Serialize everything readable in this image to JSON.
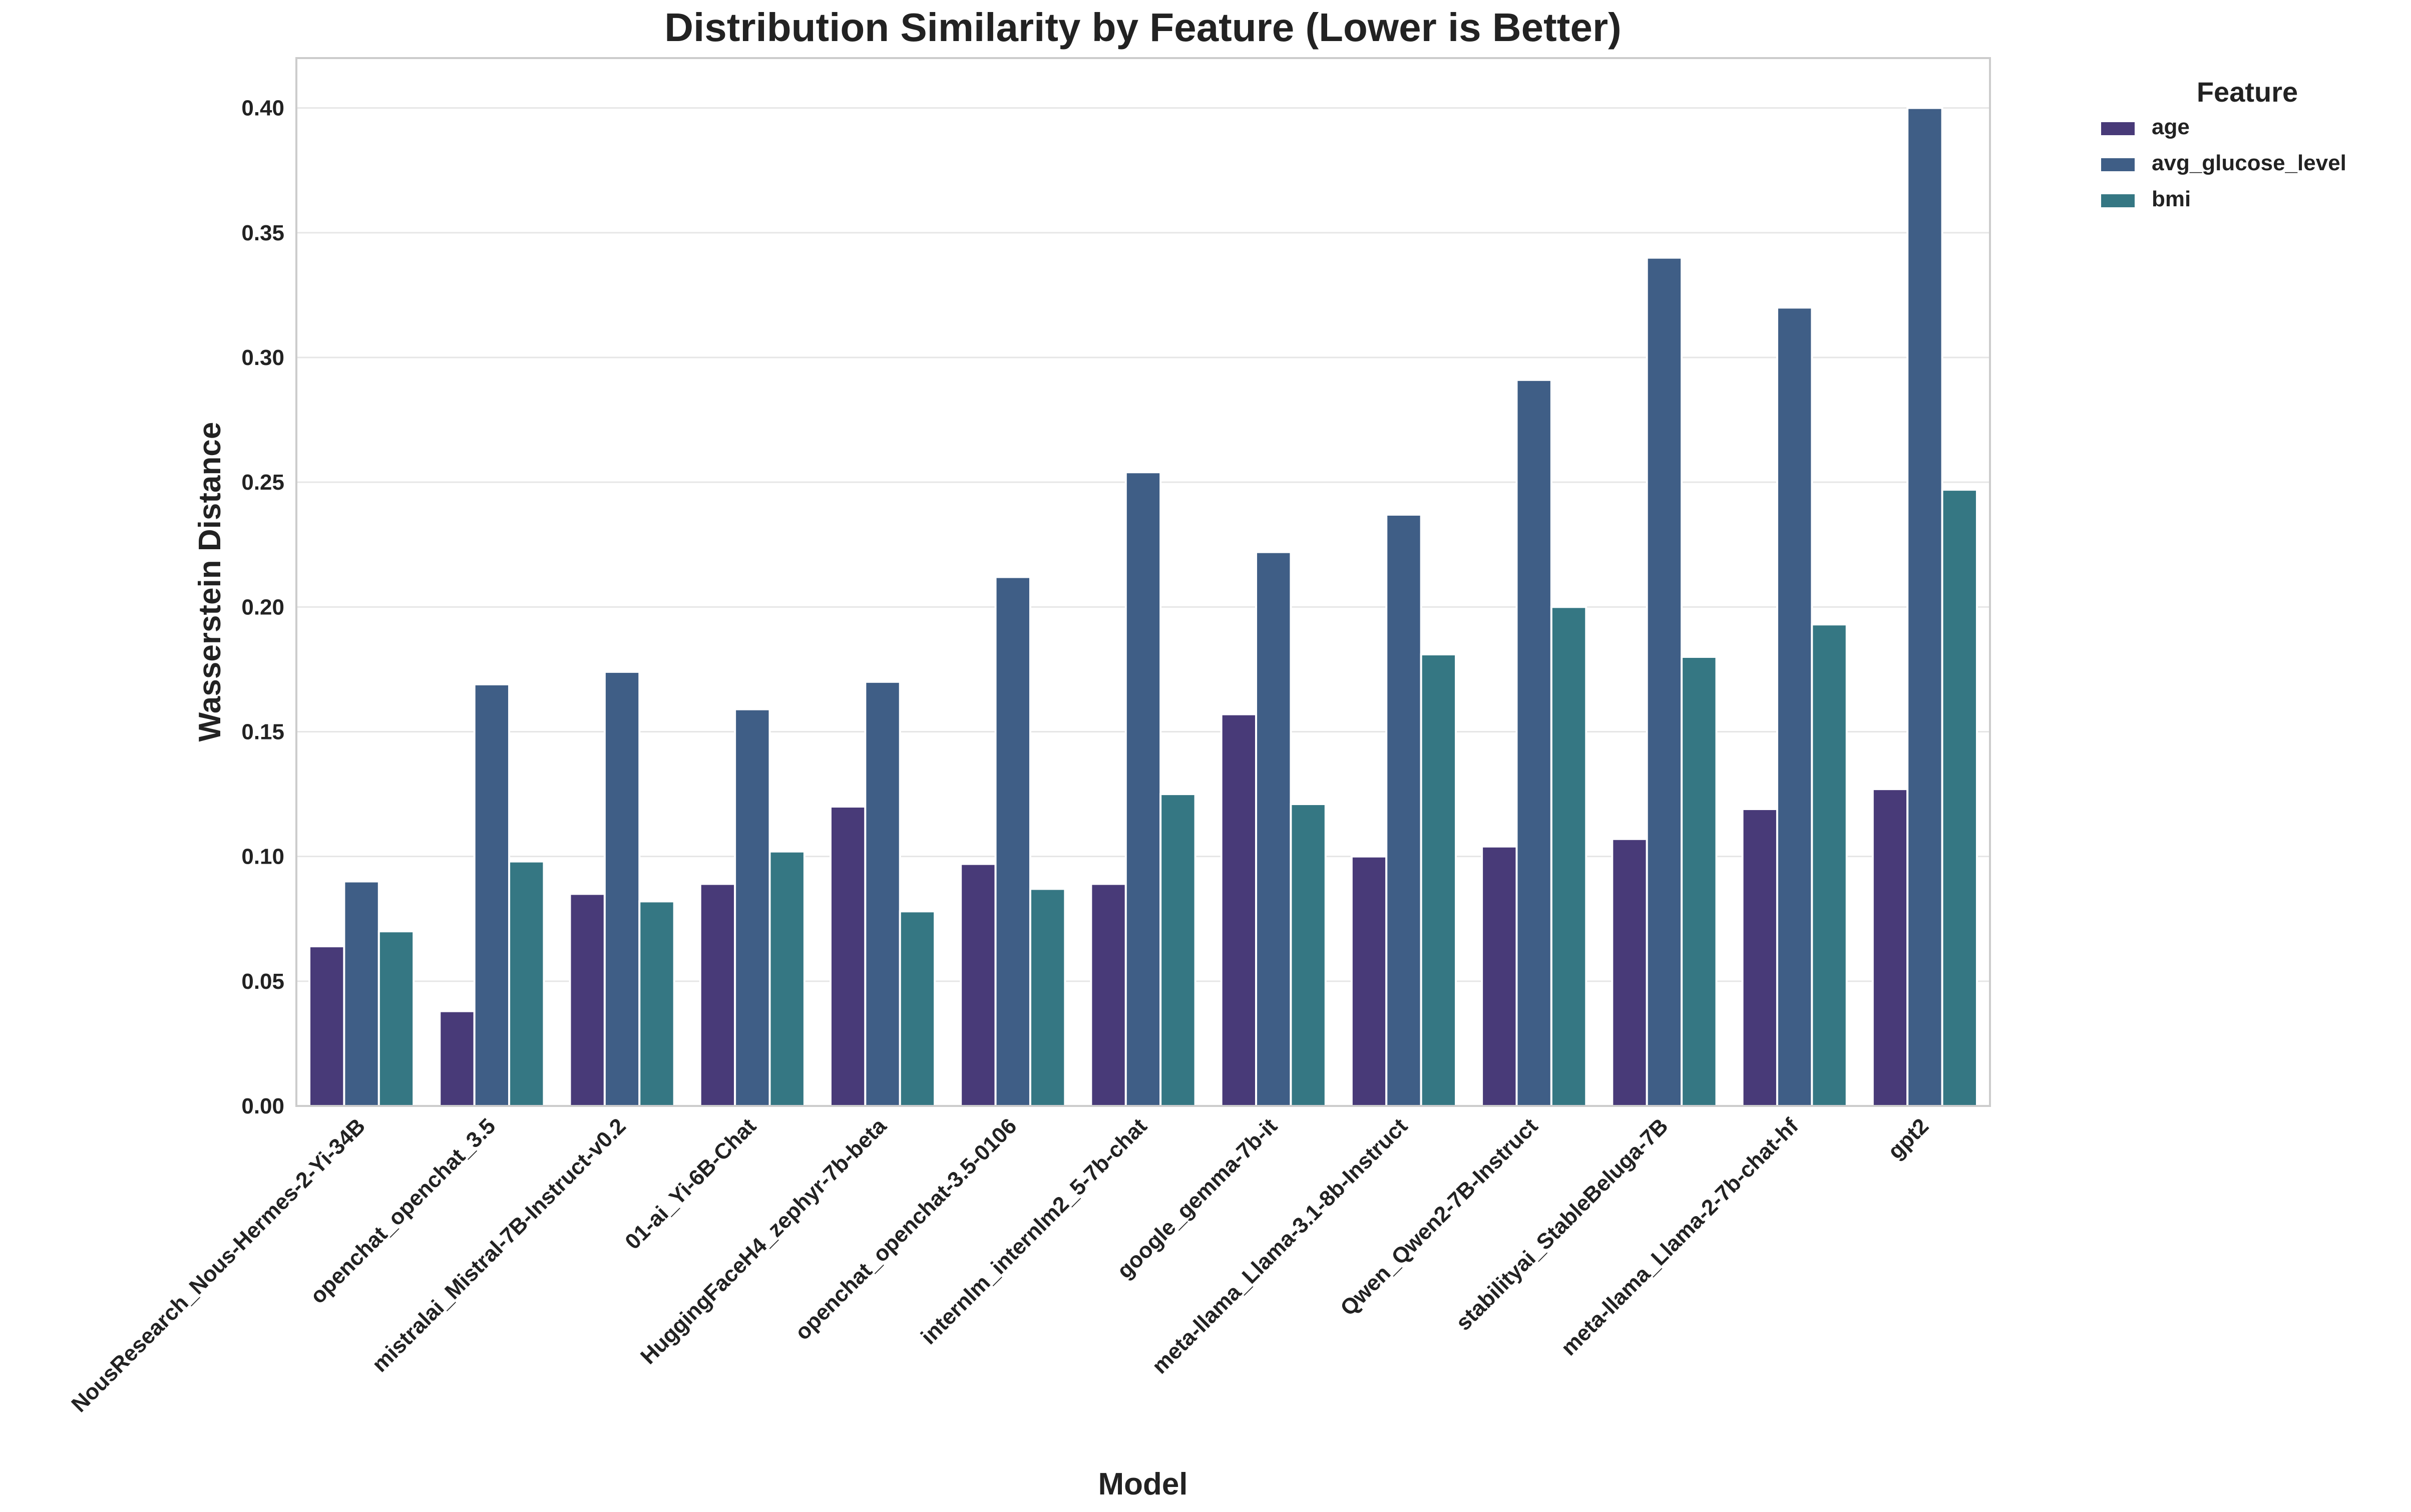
{
  "chart_data": {
    "type": "bar",
    "title": "Distribution Similarity by Feature (Lower is Better)",
    "xlabel": "Model",
    "ylabel": "Wasserstein Distance",
    "ylim": [
      0,
      0.42
    ],
    "yticks": [
      "0.00",
      "0.05",
      "0.10",
      "0.15",
      "0.20",
      "0.25",
      "0.30",
      "0.35",
      "0.40"
    ],
    "grid": "y",
    "legend_title": "Feature",
    "legend_position": "outside top-right",
    "categories": [
      "NousResearch_Nous-Hermes-2-Yi-34B",
      "openchat_openchat_3.5",
      "mistralai_Mistral-7B-Instruct-v0.2",
      "01-ai_Yi-6B-Chat",
      "HuggingFaceH4_zephyr-7b-beta",
      "openchat_openchat-3.5-0106",
      "internlm_internlm2_5-7b-chat",
      "google_gemma-7b-it",
      "meta-llama_Llama-3.1-8b-Instruct",
      "Qwen_Qwen2-7B-Instruct",
      "stabilityai_StableBeluga-7B",
      "meta-llama_Llama-2-7b-chat-hf",
      "gpt2"
    ],
    "series": [
      {
        "name": "age",
        "color": "#483a78",
        "values": [
          0.064,
          0.038,
          0.085,
          0.089,
          0.12,
          0.097,
          0.089,
          0.157,
          0.1,
          0.104,
          0.107,
          0.119,
          0.127
        ]
      },
      {
        "name": "avg_glucose_level",
        "color": "#3f5e86",
        "values": [
          0.09,
          0.169,
          0.174,
          0.159,
          0.17,
          0.212,
          0.254,
          0.222,
          0.237,
          0.291,
          0.34,
          0.32,
          0.4
        ]
      },
      {
        "name": "bmi",
        "color": "#357783",
        "values": [
          0.07,
          0.098,
          0.082,
          0.102,
          0.078,
          0.087,
          0.125,
          0.121,
          0.181,
          0.2,
          0.18,
          0.193,
          0.247
        ]
      }
    ]
  }
}
